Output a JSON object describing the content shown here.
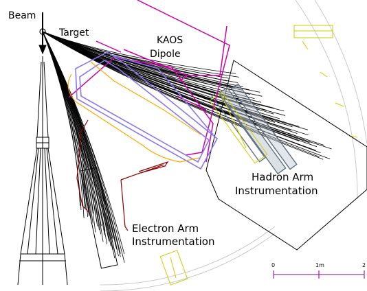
{
  "labels": {
    "beam": "Beam",
    "target": "Target",
    "dipole_line1": "KAOS",
    "dipole_line2": "Dipole",
    "hadron_line1": "Hadron Arm",
    "hadron_line2": "Instrumentation",
    "electron_line1": "Electron Arm",
    "electron_line2": "Instrumentation"
  },
  "scale_bar": {
    "ticks": [
      "0",
      "1m",
      "2"
    ]
  },
  "colors": {
    "tracks": "#000000",
    "dipole_yoke": "#cc00aa",
    "coil": "#8877ee",
    "pole_edge": "#ffaa00",
    "electron_arm": "#880000",
    "hadron_detectors": "#607080",
    "hall_structure": "#cccc00",
    "hall_wall": "#c8c8c8",
    "scale_bar": "#880088"
  }
}
